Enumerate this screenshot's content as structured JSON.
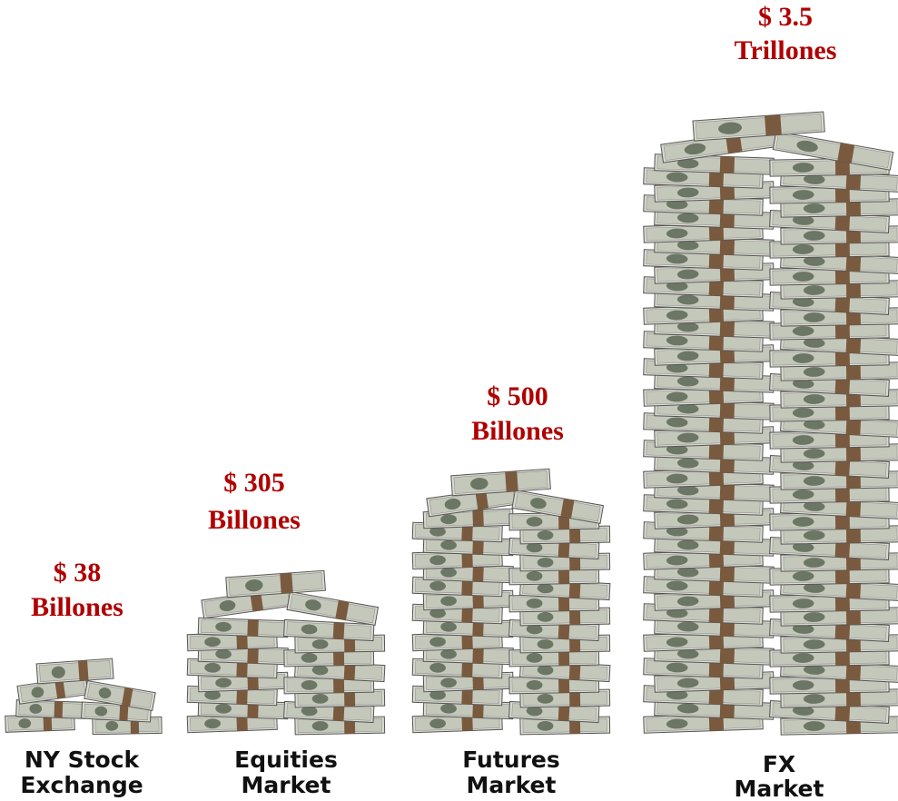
{
  "items": [
    {
      "amount": "$ 38",
      "unit": "Billones",
      "label": [
        "NY Stock",
        "Exchange"
      ]
    },
    {
      "amount": "$ 305",
      "unit": "Billones",
      "label": [
        "Equities",
        "Market"
      ]
    },
    {
      "amount": "$ 500",
      "unit": "Billones",
      "label": [
        "Futures",
        "Market"
      ]
    },
    {
      "amount": "$ 3.5",
      "unit": "Trillones",
      "label": [
        "FX",
        "Market"
      ]
    }
  ]
}
